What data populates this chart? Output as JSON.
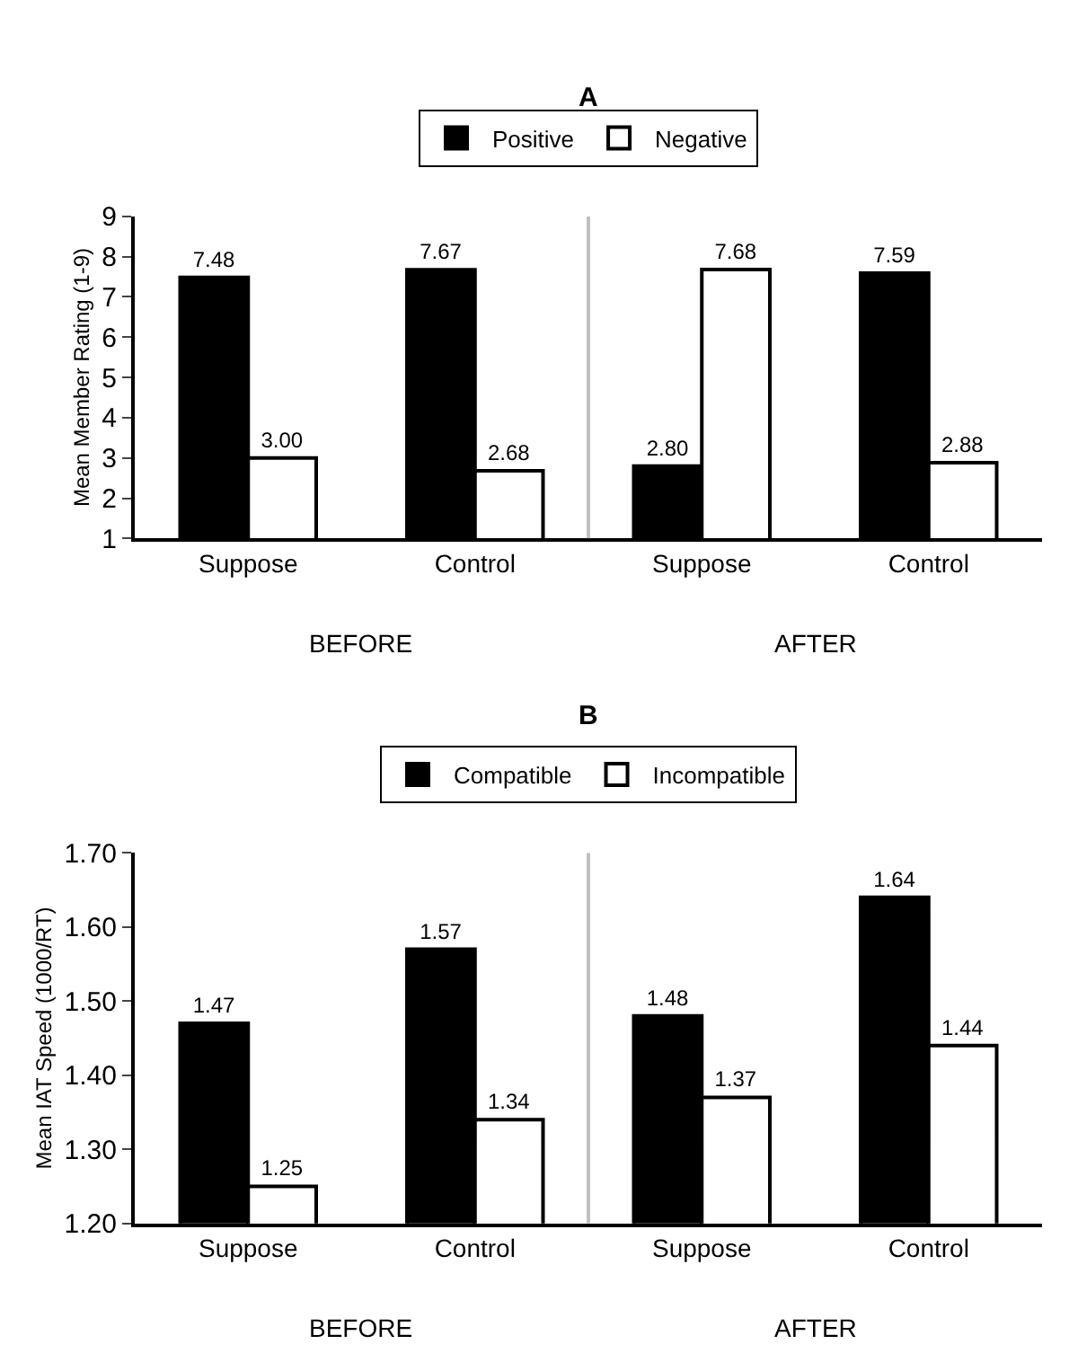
{
  "chart_data": [
    {
      "type": "bar",
      "title": "A",
      "ylabel": "Mean Member Rating (1-9)",
      "categories": [
        "Suppose",
        "Control",
        "Suppose",
        "Control"
      ],
      "series": [
        {
          "name": "Positive",
          "color": "#000000",
          "values": [
            7.48,
            7.67,
            2.8,
            7.59
          ],
          "value_labels": [
            "7.48",
            "7.67",
            "2.80",
            "7.59"
          ]
        },
        {
          "name": "Negative",
          "color": "#ffffff",
          "values": [
            3.0,
            2.68,
            7.68,
            2.88
          ],
          "value_labels": [
            "3.00",
            "2.68",
            "7.68",
            "2.88"
          ]
        }
      ],
      "ylim": [
        1,
        9
      ],
      "yticks": [
        1,
        2,
        3,
        4,
        5,
        6,
        7,
        8,
        9
      ],
      "legend": "top",
      "annotations": [
        "BEFORE",
        "AFTER"
      ]
    },
    {
      "type": "bar",
      "title": "B",
      "ylabel": "Mean IAT Speed (1000/RT)",
      "categories": [
        "Suppose",
        "Control",
        "Suppose",
        "Control"
      ],
      "series": [
        {
          "name": "Compatible",
          "color": "#000000",
          "values": [
            1.47,
            1.57,
            1.48,
            1.64
          ],
          "value_labels": [
            "1.47",
            "1.57",
            "1.48",
            "1.64"
          ]
        },
        {
          "name": "Incompatible",
          "color": "#ffffff",
          "values": [
            1.25,
            1.34,
            1.37,
            1.44
          ],
          "value_labels": [
            "1.25",
            "1.34",
            "1.37",
            "1.44"
          ]
        }
      ],
      "ylim": [
        1.2,
        1.7
      ],
      "yticks": [
        {
          "value": 1.2,
          "label": "1.20"
        },
        {
          "value": 1.3,
          "label": "1.30"
        },
        {
          "value": 1.4,
          "label": "1.40"
        },
        {
          "value": 1.5,
          "label": "1.50"
        },
        {
          "value": 1.6,
          "label": "1.60"
        },
        {
          "value": 1.7,
          "label": "1.70"
        }
      ],
      "legend": "top",
      "annotations": [
        "BEFORE",
        "AFTER"
      ]
    }
  ]
}
